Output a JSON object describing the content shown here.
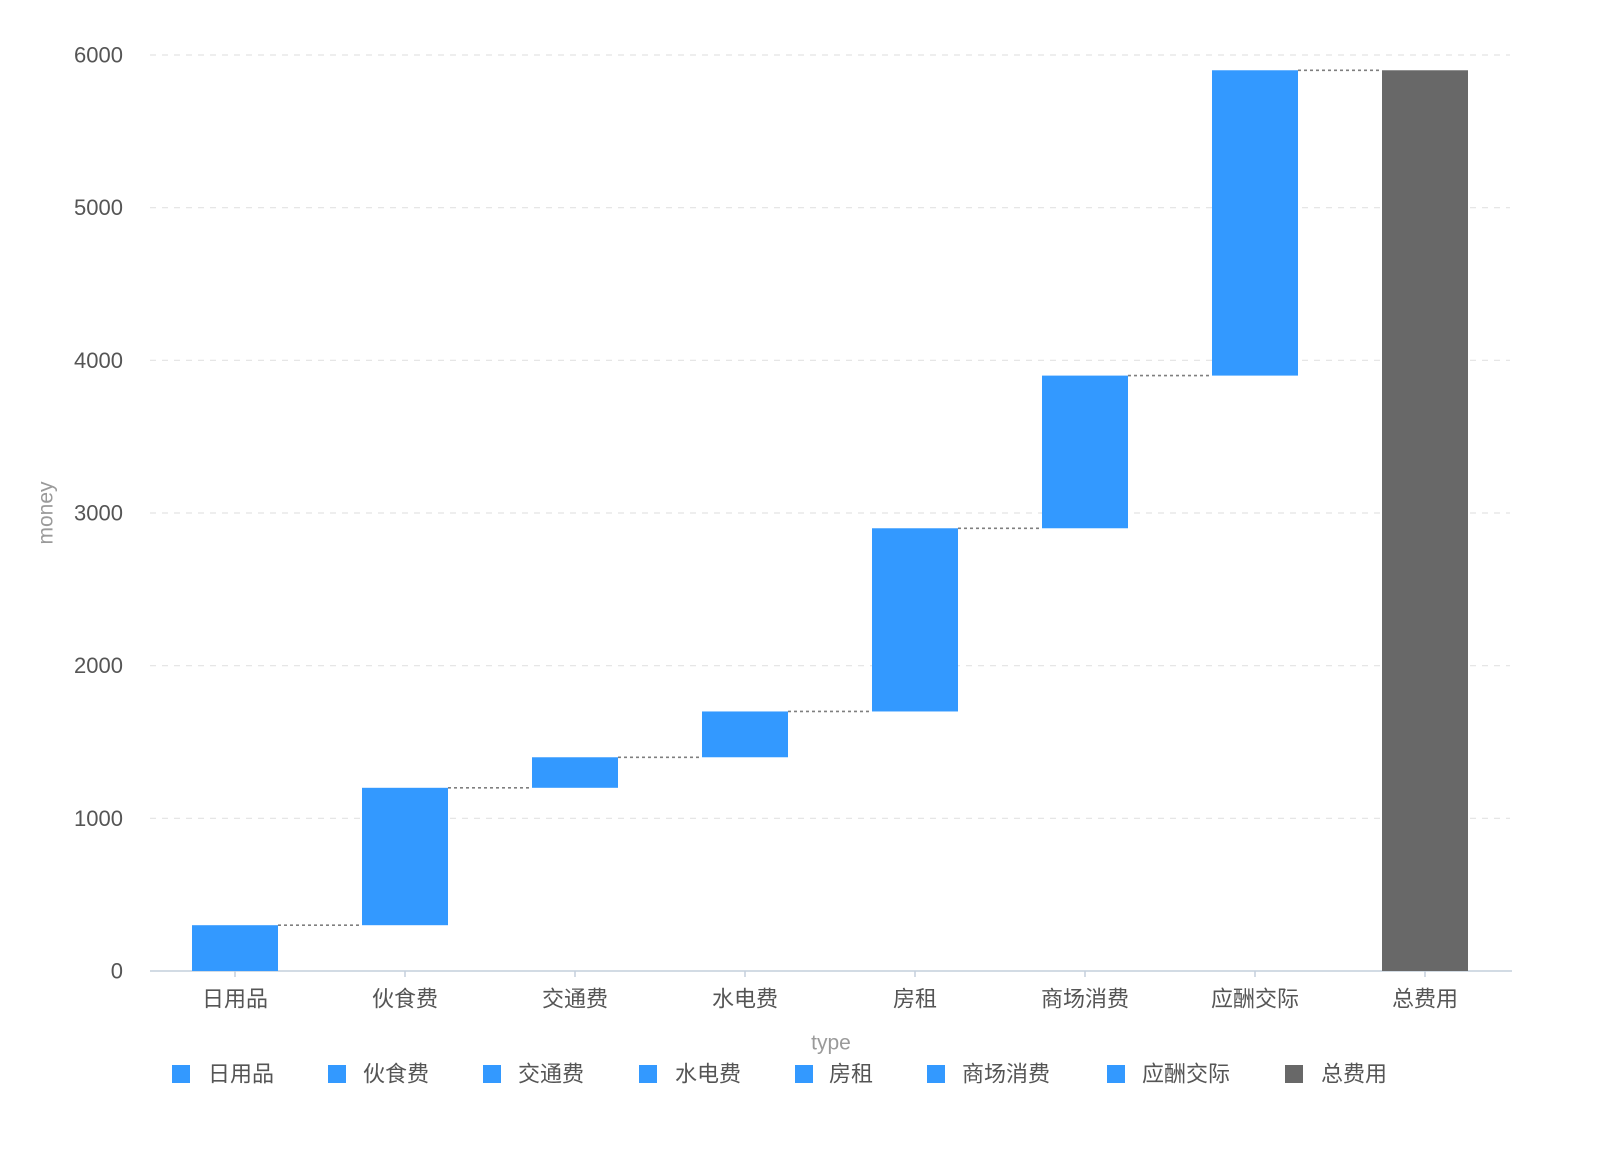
{
  "chart_data": {
    "type": "bar",
    "subtype": "waterfall",
    "categories": [
      "日用品",
      "伙食费",
      "交通费",
      "水电费",
      "房租",
      "商场消费",
      "应酬交际",
      "总费用"
    ],
    "values": [
      300,
      900,
      200,
      300,
      1200,
      1000,
      2000,
      5900
    ],
    "is_total": [
      false,
      false,
      false,
      false,
      false,
      false,
      false,
      true
    ],
    "ylim": [
      0,
      6000
    ],
    "yticks": [
      0,
      1000,
      2000,
      3000,
      4000,
      5000,
      6000
    ],
    "xlabel": "type",
    "ylabel": "money",
    "grid": true,
    "legend_position": "bottom",
    "colors": {
      "increase": "#3399ff",
      "total": "#686868",
      "connector": "#7f7f7f"
    }
  }
}
